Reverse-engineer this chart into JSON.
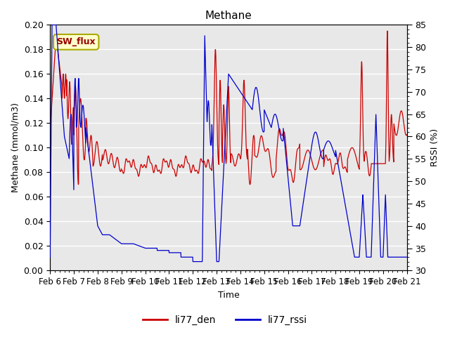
{
  "title": "Methane",
  "xlabel": "Time",
  "ylabel_left": "Methane (mmol/m3)",
  "ylabel_right": "RSSI (%)",
  "ylim_left": [
    0.0,
    0.2
  ],
  "ylim_right": [
    30,
    85
  ],
  "yticks_left": [
    0.0,
    0.02,
    0.04,
    0.06,
    0.08,
    0.1,
    0.12,
    0.14,
    0.16,
    0.18,
    0.2
  ],
  "yticks_right": [
    30,
    35,
    40,
    45,
    50,
    55,
    60,
    65,
    70,
    75,
    80,
    85
  ],
  "xtick_labels": [
    "Feb 6",
    "Feb 7",
    "Feb 8",
    "Feb 9",
    "Feb 10",
    "Feb 11",
    "Feb 12",
    "Feb 13",
    "Feb 14",
    "Feb 15",
    "Feb 16",
    "Feb 17",
    "Feb 18",
    "Feb 19",
    "Feb 20",
    "Feb 21"
  ],
  "color_red": "#cc0000",
  "color_blue": "#0000cc",
  "bg_color": "#e8e8e8",
  "plot_bg": "#e8e8e8",
  "annotation_text": "SW_flux",
  "annotation_bg": "#ffffcc",
  "annotation_border": "#aaaa00",
  "legend_labels": [
    "li77_den",
    "li77_rssi"
  ],
  "linewidth": 0.9,
  "title_fontsize": 11,
  "axis_fontsize": 9,
  "tick_fontsize": 9
}
